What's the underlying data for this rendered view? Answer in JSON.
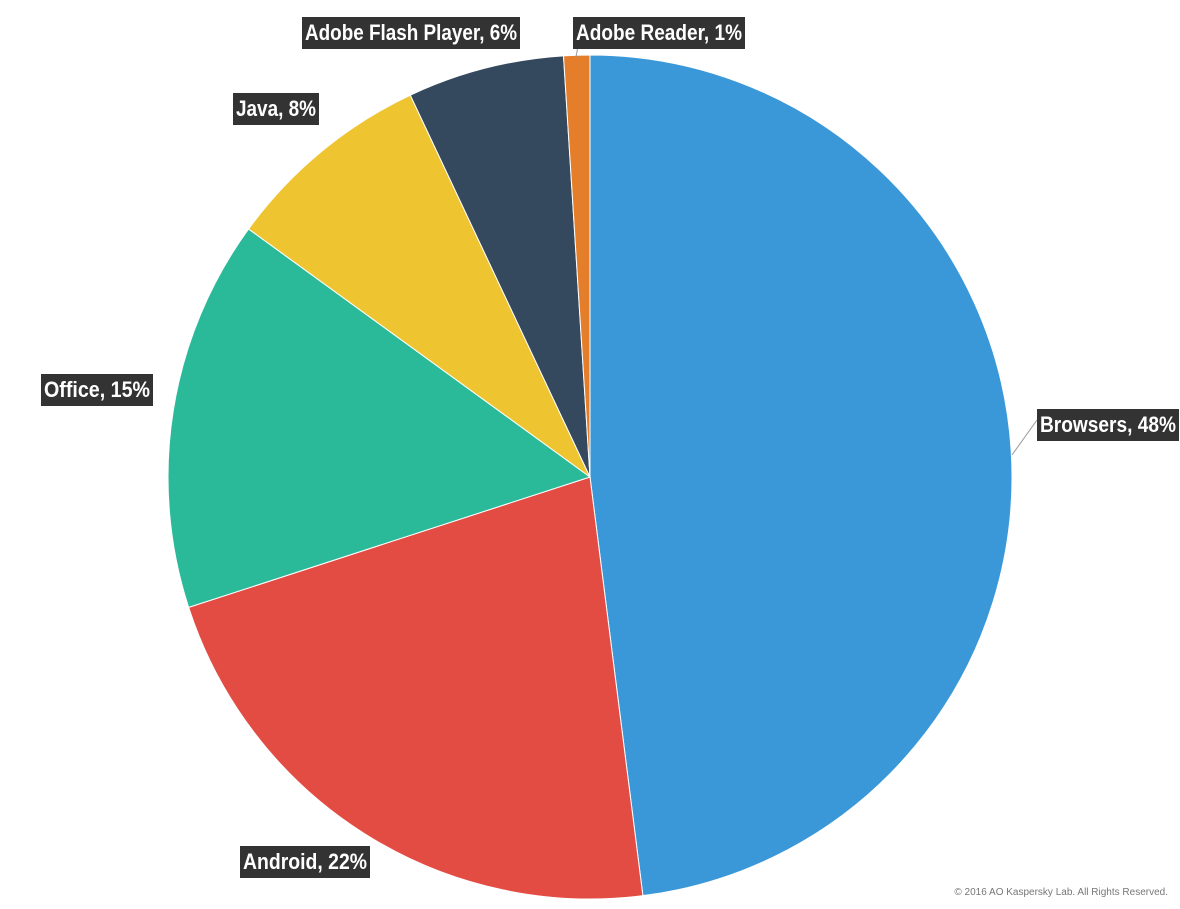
{
  "chart_data": {
    "type": "pie",
    "values": [
      48,
      22,
      15,
      8,
      6,
      1
    ],
    "value_labels": [
      "Browsers, 48%",
      "Android, 22%",
      "Office, 15%",
      "Java, 8%",
      "Adobe Flash Player, 6%",
      "Adobe Reader, 1%"
    ],
    "colors": [
      "#3a98d8",
      "#e24c43",
      "#2aba9a",
      "#efc431",
      "#34495e",
      "#e57e2b"
    ],
    "credit": "© 2016 AO Kaspersky Lab. All Rights Reserved."
  }
}
